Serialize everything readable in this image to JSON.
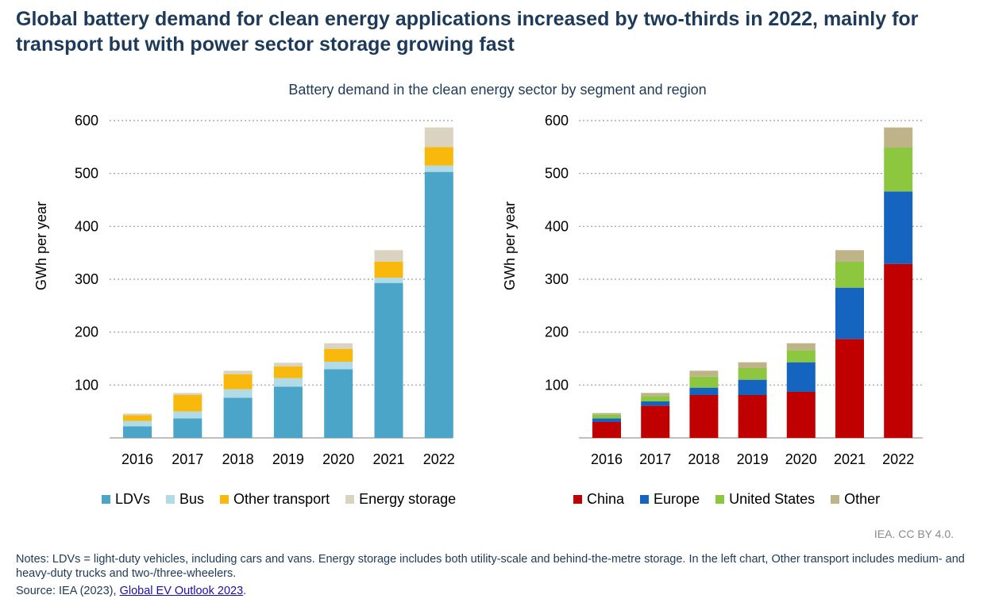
{
  "title": "Global battery demand for clean energy applications increased by two-thirds in 2022, mainly for transport but with power sector storage growing fast",
  "subtitle": "Battery demand in the clean energy sector by segment and region",
  "credit": "IEA. CC BY 4.0.",
  "notes": "Notes: LDVs = light-duty vehicles, including cars and vans. Energy storage includes both utility-scale and behind-the-metre storage. In the left chart, Other transport includes medium- and heavy-duty trucks and two-/three-wheelers.",
  "source": {
    "prefix": "Source: IEA (2023), ",
    "link_text": "Global EV Outlook 2023",
    "suffix": "."
  },
  "chart_data": [
    {
      "type": "bar",
      "stacked": true,
      "title": "",
      "xlabel": "",
      "ylabel": "GWh per year",
      "ylim": [
        0,
        600
      ],
      "yticks": [
        100,
        200,
        300,
        400,
        500,
        600
      ],
      "grid": true,
      "legend_position": "bottom",
      "categories": [
        "2016",
        "2017",
        "2018",
        "2019",
        "2020",
        "2021",
        "2022"
      ],
      "series": [
        {
          "name": "LDVs",
          "color": "#4aa5c8",
          "values": [
            22,
            37,
            76,
            97,
            130,
            293,
            503
          ]
        },
        {
          "name": "Bus",
          "color": "#b2dbe8",
          "values": [
            10,
            13,
            16,
            16,
            14,
            10,
            12
          ]
        },
        {
          "name": "Other transport",
          "color": "#f9b90c",
          "values": [
            11,
            31,
            28,
            22,
            24,
            30,
            35
          ]
        },
        {
          "name": "Energy storage",
          "color": "#d9d3c0",
          "values": [
            3,
            4,
            7,
            7,
            11,
            22,
            37
          ]
        }
      ]
    },
    {
      "type": "bar",
      "stacked": true,
      "title": "",
      "xlabel": "",
      "ylabel": "GWh per year",
      "ylim": [
        0,
        600
      ],
      "yticks": [
        100,
        200,
        300,
        400,
        500,
        600
      ],
      "grid": true,
      "legend_position": "bottom",
      "categories": [
        "2016",
        "2017",
        "2018",
        "2019",
        "2020",
        "2021",
        "2022"
      ],
      "series": [
        {
          "name": "China",
          "color": "#c00000",
          "values": [
            30,
            61,
            81,
            81,
            87,
            187,
            329
          ]
        },
        {
          "name": "Europe",
          "color": "#1565c0",
          "values": [
            7,
            8,
            14,
            29,
            56,
            97,
            137
          ]
        },
        {
          "name": "United States",
          "color": "#8dc63f",
          "values": [
            7,
            10,
            21,
            22,
            23,
            49,
            83
          ]
        },
        {
          "name": "Other",
          "color": "#bfb38a",
          "values": [
            3,
            6,
            11,
            11,
            13,
            22,
            38
          ]
        }
      ]
    }
  ]
}
